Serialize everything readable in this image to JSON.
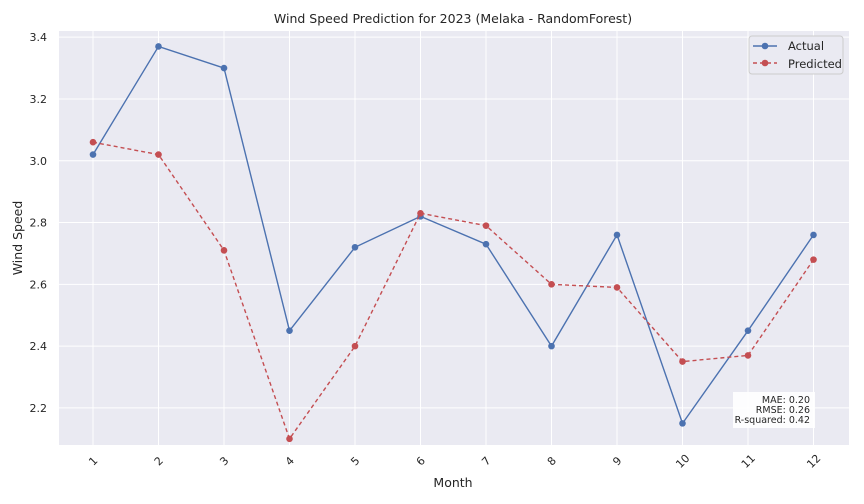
{
  "chart_data": {
    "type": "line",
    "title": "Wind Speed Prediction for 2023 (Melaka - RandomForest)",
    "xlabel": "Month",
    "ylabel": "Wind Speed",
    "categories": [
      "1",
      "2",
      "3",
      "4",
      "5",
      "6",
      "7",
      "8",
      "9",
      "10",
      "11",
      "12"
    ],
    "series": [
      {
        "name": "Actual",
        "color": "#4c72b0",
        "style": "solid",
        "marker": "circle",
        "values": [
          3.02,
          3.37,
          3.3,
          2.45,
          2.72,
          2.82,
          2.73,
          2.4,
          2.76,
          2.15,
          2.45,
          2.76
        ]
      },
      {
        "name": "Predicted",
        "color": "#c44e52",
        "style": "dashed",
        "marker": "circle",
        "values": [
          3.06,
          3.02,
          2.71,
          2.1,
          2.4,
          2.83,
          2.79,
          2.6,
          2.59,
          2.35,
          2.37,
          2.68
        ]
      }
    ],
    "ylim": [
      2.08,
      3.42
    ],
    "yticks": [
      "2.2",
      "2.4",
      "2.6",
      "2.8",
      "3.0",
      "3.2",
      "3.4"
    ],
    "grid": true,
    "background": "#eaeaf2",
    "legend_position": "top-right",
    "metrics": [
      "MAE: 0.20",
      "RMSE: 0.26",
      "R-squared: 0.42"
    ]
  }
}
